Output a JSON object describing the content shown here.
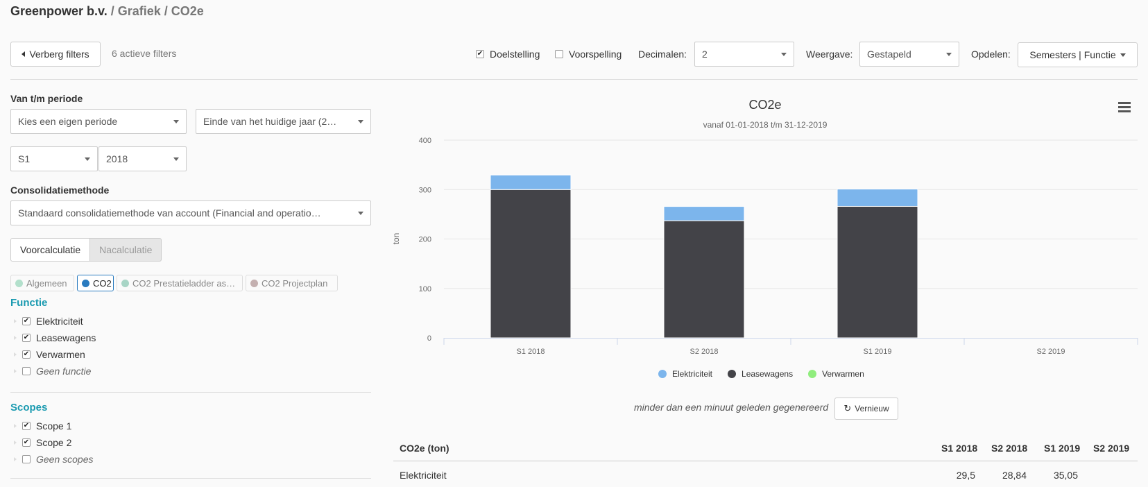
{
  "breadcrumb": {
    "company": "Greenpower b.v.",
    "sep1": " / ",
    "crumb1": "Grafiek",
    "sep2": " / ",
    "crumb2": "CO2e"
  },
  "toolbar": {
    "hide_filters_label": "Verberg filters",
    "active_filters_label": "6 actieve filters",
    "doelstelling_label": "Doelstelling",
    "doelstelling_checked": true,
    "voorspelling_label": "Voorspelling",
    "voorspelling_checked": false,
    "decimalen_label": "Decimalen:",
    "decimalen_value": "2",
    "weergave_label": "Weergave:",
    "weergave_value": "Gestapeld",
    "opdelen_label": "Opdelen:",
    "opdelen_value": "Semesters | Functie"
  },
  "filters": {
    "periode_label": "Van t/m periode",
    "periode_select": "Kies een eigen periode",
    "periode_end_select": "Einde van het huidige jaar (2…",
    "semester_select": "S1",
    "year_select": "2018",
    "consolidatie_label": "Consolidatiemethode",
    "consolidatie_select": "Standaard consolidatiemethode van account (Financial and operatio…",
    "calc_toggle": {
      "left": "Voorcalculatie",
      "right": "Nacalculatie"
    },
    "tags": [
      {
        "label": "Algemeen",
        "color": "#b3e0cc",
        "active": false
      },
      {
        "label": "CO2",
        "color": "#2a7bbf",
        "active": true
      },
      {
        "label": "CO2 Prestatieladder as…",
        "color": "#a8d5c6",
        "active": false
      },
      {
        "label": "CO2 Projectplan",
        "color": "#c4b0b0",
        "active": false
      }
    ],
    "functie_title": "Functie",
    "functie_items": [
      {
        "label": "Elektriciteit",
        "checked": true,
        "italic": false
      },
      {
        "label": "Leasewagens",
        "checked": true,
        "italic": false
      },
      {
        "label": "Verwarmen",
        "checked": true,
        "italic": false
      },
      {
        "label": "Geen functie",
        "checked": false,
        "italic": true
      }
    ],
    "scopes_title": "Scopes",
    "scopes_items": [
      {
        "label": "Scope 1",
        "checked": true,
        "italic": false
      },
      {
        "label": "Scope 2",
        "checked": true,
        "italic": false
      },
      {
        "label": "Geen scopes",
        "checked": false,
        "italic": true
      }
    ]
  },
  "chart_data": {
    "type": "bar",
    "title": "CO2e",
    "subtitle": "vanaf 01-01-2018 t/m 31-12-2019",
    "ylabel": "ton",
    "xlabel": "",
    "ylim": [
      0,
      400
    ],
    "yticks": [
      "0",
      "100",
      "200",
      "300",
      "400"
    ],
    "categories": [
      "S1 2018",
      "S2 2018",
      "S1 2019",
      "S2 2019"
    ],
    "stacked": true,
    "series": [
      {
        "name": "Elektriciteit",
        "color": "#7cb5ec",
        "values": [
          29.5,
          28.84,
          35.05,
          0
        ]
      },
      {
        "name": "Leasewagens",
        "color": "#434348",
        "values": [
          300,
          237,
          266,
          0
        ]
      },
      {
        "name": "Verwarmen",
        "color": "#90ed7d",
        "values": [
          0,
          0,
          0,
          0
        ]
      }
    ],
    "legend_position": "bottom",
    "grid": true
  },
  "chart_footer": {
    "generated_text": "minder dan een minuut geleden gegenereerd",
    "refresh_label": "Vernieuw"
  },
  "table": {
    "header": [
      "CO2e (ton)",
      "S1 2018",
      "S2 2018",
      "S1 2019",
      "S2 2019"
    ],
    "rows": [
      [
        "Elektriciteit",
        "29,5",
        "28,84",
        "35,05",
        ""
      ]
    ]
  }
}
